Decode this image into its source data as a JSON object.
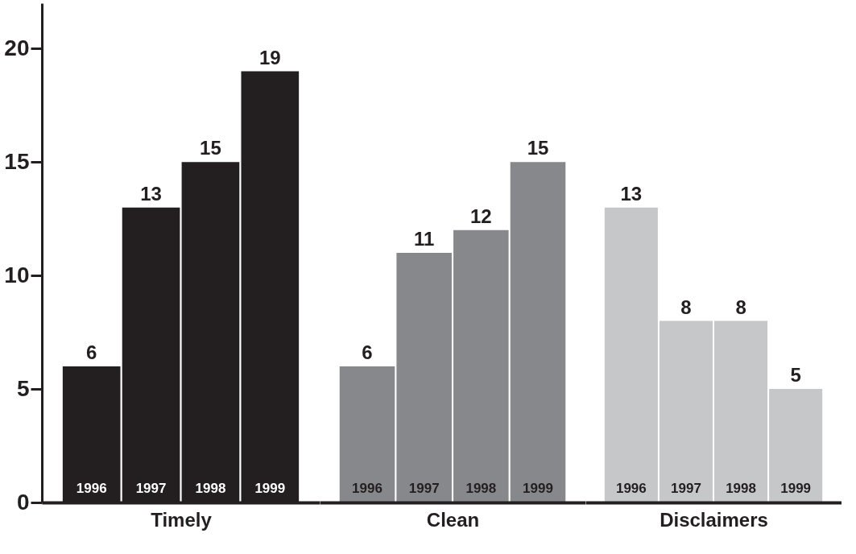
{
  "chart_data": [
    {
      "type": "bar",
      "xlabel": "Timely",
      "categories": [
        "1996",
        "1997",
        "1998",
        "1999"
      ],
      "values": [
        6,
        13,
        15,
        19
      ],
      "color": "#231f20",
      "ylim": [
        0,
        22
      ],
      "yticks": [
        0,
        5,
        10,
        15,
        20
      ],
      "data_labels": true
    },
    {
      "type": "bar",
      "xlabel": "Clean",
      "categories": [
        "1996",
        "1997",
        "1998",
        "1999"
      ],
      "values": [
        6,
        11,
        12,
        15
      ],
      "color": "#87888c",
      "ylim": [
        0,
        22
      ],
      "yticks": [
        0,
        5,
        10,
        15,
        20
      ],
      "data_labels": true,
      "tick_labels": "x"
    },
    {
      "type": "bar",
      "xlabel": "Disclaimers",
      "categories": [
        "1996",
        "1997",
        "1998",
        "1999"
      ],
      "values": [
        13,
        8,
        8,
        5
      ],
      "color": "#c6c7c9",
      "ylim": [
        0,
        22
      ],
      "yticks": [
        0,
        5,
        10,
        15,
        20
      ],
      "data_labels": true,
      "tick_labels": "x"
    }
  ]
}
